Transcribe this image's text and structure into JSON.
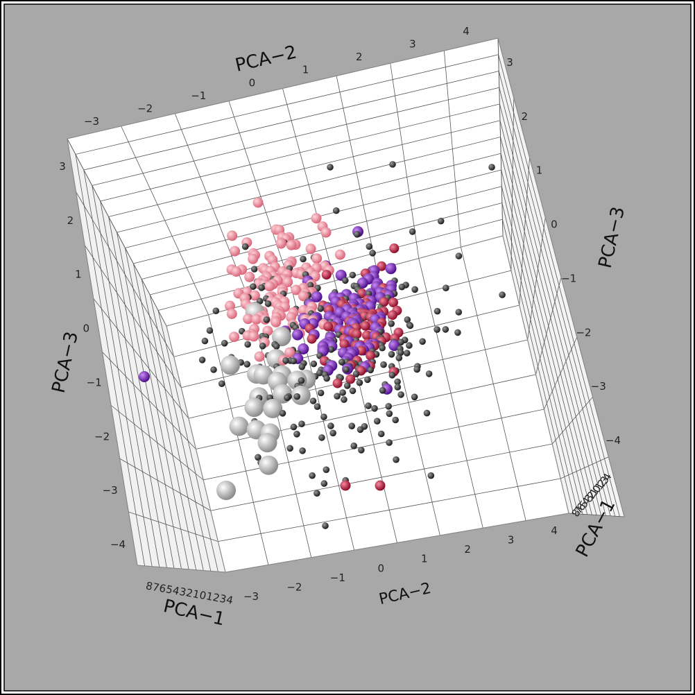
{
  "chart_data": {
    "type": "scatter",
    "projection": "3d",
    "axes": {
      "pca1": {
        "label": "PCA−1",
        "ticks": [
          "8",
          "7",
          "6",
          "5",
          "4",
          "3",
          "2",
          "1",
          "0",
          "1",
          "2",
          "3",
          "4"
        ]
      },
      "pca2": {
        "label": "PCA−2",
        "ticks": [
          "−3",
          "−2",
          "−1",
          "0",
          "1",
          "2",
          "3",
          "4"
        ]
      },
      "pca3": {
        "label": "PCA−3",
        "ticks": [
          "3",
          "2",
          "1",
          "0",
          "−1",
          "−2",
          "−3",
          "−4"
        ]
      }
    },
    "legend": null,
    "grid": true,
    "colors": {
      "background": "#a8a8a8",
      "panel": "#ffffff",
      "series": [
        "#3a3a3a",
        "#f28b9a",
        "#7b22c6",
        "#c8163c",
        "#c8c8c8"
      ]
    },
    "series": [
      {
        "color": "#3a3a3a",
        "size": "small",
        "approx_count": 230
      },
      {
        "color": "#f28b9a",
        "size": "medium",
        "approx_count": 120
      },
      {
        "color": "#7b22c6",
        "size": "medium",
        "approx_count": 95
      },
      {
        "color": "#c8163c",
        "size": "medium",
        "approx_count": 75
      },
      {
        "color": "#c8c8c8",
        "size": "large",
        "approx_count": 20
      }
    ]
  }
}
